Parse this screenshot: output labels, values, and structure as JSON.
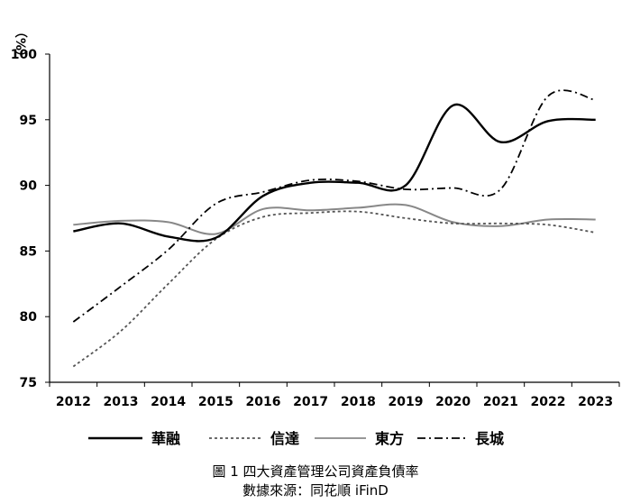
{
  "caption": {
    "title": "圖 1 四大資產管理公司資產負債率",
    "source": "數據來源：同花順 iFinD"
  },
  "chart_data": {
    "type": "line",
    "title": "圖 1 四大資產管理公司資產負債率",
    "xlabel": "",
    "ylabel": "（%）",
    "ylim": [
      75,
      100
    ],
    "y_ticks": [
      "75",
      "80",
      "85",
      "90",
      "95",
      "100"
    ],
    "categories": [
      "2012",
      "2013",
      "2014",
      "2015",
      "2016",
      "2017",
      "2018",
      "2019",
      "2020",
      "2021",
      "2022",
      "2023"
    ],
    "grid": false,
    "legend_position": "bottom",
    "series": [
      {
        "name": "華融",
        "color": "#000000",
        "line_style": "solid",
        "values": [
          86.5,
          87.1,
          86.1,
          86.0,
          89.2,
          90.2,
          90.2,
          90.0,
          96.1,
          93.3,
          94.9,
          95.0
        ]
      },
      {
        "name": "信達",
        "color": "#555555",
        "line_style": "dotted",
        "values": [
          76.2,
          78.9,
          82.5,
          85.9,
          87.6,
          87.9,
          88.0,
          87.5,
          87.1,
          87.1,
          87.0,
          86.4
        ]
      },
      {
        "name": "東方",
        "color": "#888888",
        "line_style": "solid",
        "values": [
          87.0,
          87.3,
          87.2,
          86.3,
          88.2,
          88.1,
          88.3,
          88.5,
          87.2,
          86.9,
          87.4,
          87.4
        ]
      },
      {
        "name": "長城",
        "color": "#000000",
        "line_style": "dash-dot",
        "values": [
          79.6,
          82.3,
          85.1,
          88.6,
          89.5,
          90.4,
          90.3,
          89.7,
          89.8,
          89.7,
          96.8,
          96.5
        ]
      }
    ]
  }
}
